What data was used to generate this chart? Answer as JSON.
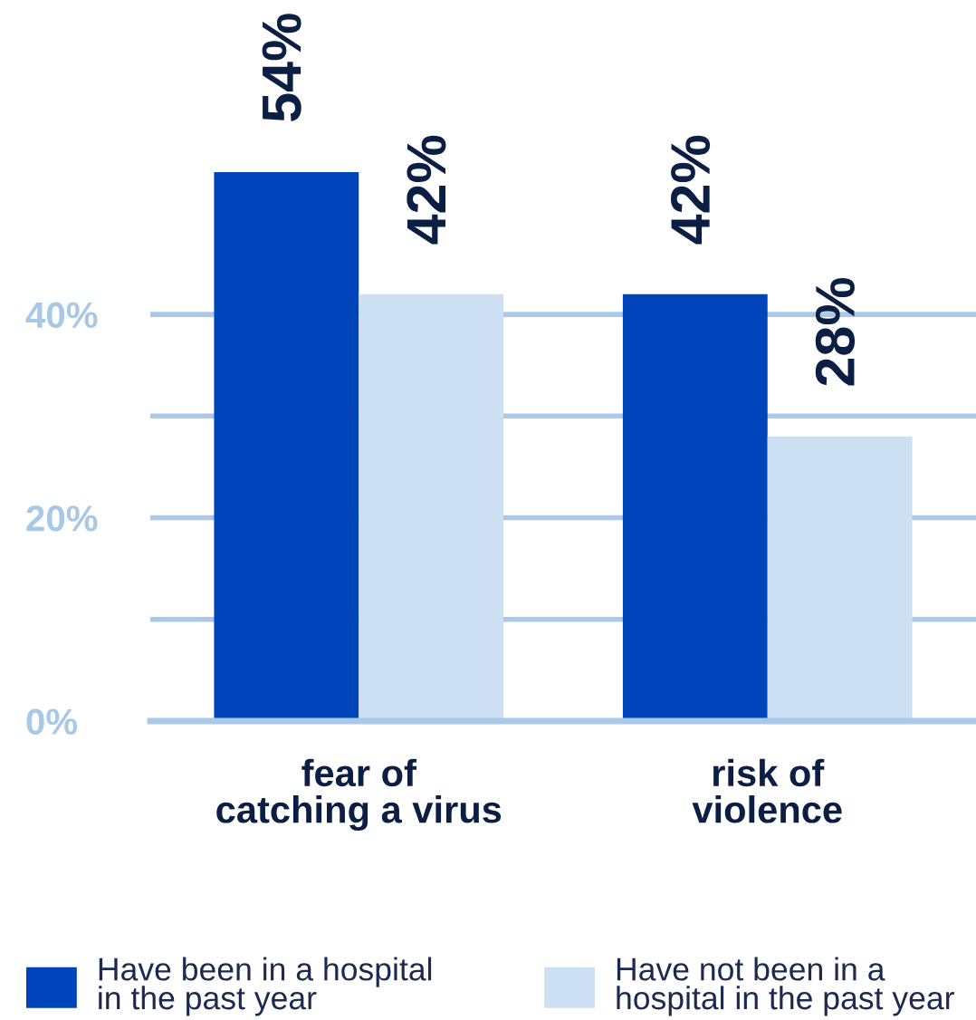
{
  "chart_data": {
    "type": "bar",
    "categories": [
      "fear of\ncatching a virus",
      "risk of\nviolence"
    ],
    "series": [
      {
        "name": "Have been in a hospital\nin the past year",
        "color": "#0044bb",
        "values": [
          54,
          42
        ],
        "value_labels": [
          "54%",
          "42%"
        ]
      },
      {
        "name": "Have not been in a\nhospital in the past year",
        "color": "#cddff2",
        "values": [
          42,
          28
        ],
        "value_labels": [
          "42%",
          "28%"
        ]
      }
    ],
    "ylim": [
      0,
      54
    ],
    "yticks": [
      {
        "value": 0,
        "label": "0%"
      },
      {
        "value": 10,
        "label": null
      },
      {
        "value": 20,
        "label": "20%"
      },
      {
        "value": 30,
        "label": null
      },
      {
        "value": 40,
        "label": "40%"
      }
    ],
    "grid": "y",
    "legend": "bottom"
  }
}
